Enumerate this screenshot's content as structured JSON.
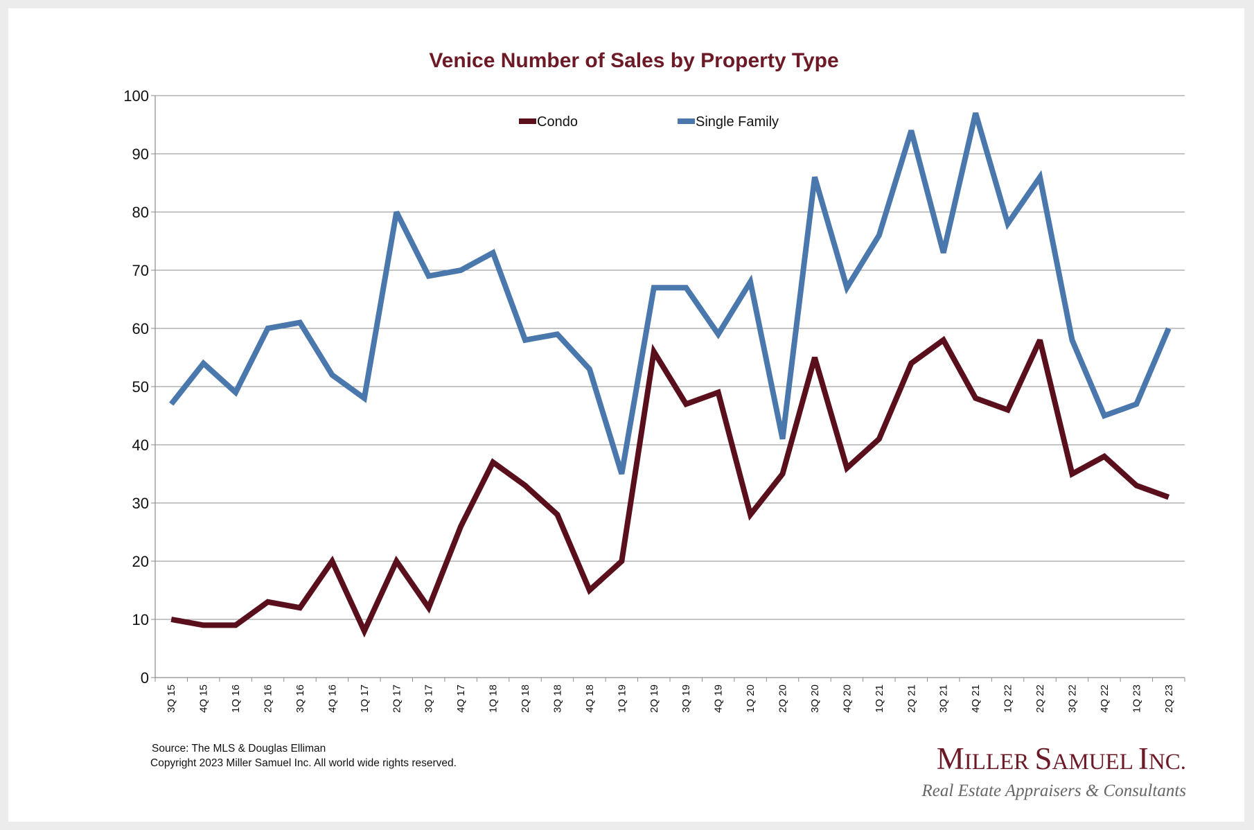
{
  "colors": {
    "condo": "#5a0f1c",
    "single_family": "#4a78ad",
    "title": "#6b1a26",
    "grid": "#8c8c8c"
  },
  "chart_data": {
    "type": "line",
    "title": "Venice Number of Sales by Property Type",
    "xlabel": "",
    "ylabel": "",
    "ylim": [
      0,
      100
    ],
    "yticks": [
      0,
      10,
      20,
      30,
      40,
      50,
      60,
      70,
      80,
      90,
      100
    ],
    "grid": "horizontal",
    "legend_position": "top-center",
    "categories": [
      "3Q 15",
      "4Q 15",
      "1Q 16",
      "2Q 16",
      "3Q 16",
      "4Q 16",
      "1Q 17",
      "2Q 17",
      "3Q 17",
      "4Q 17",
      "1Q 18",
      "2Q 18",
      "3Q 18",
      "4Q 18",
      "1Q 19",
      "2Q 19",
      "3Q 19",
      "4Q 19",
      "1Q 20",
      "2Q 20",
      "3Q 20",
      "4Q 20",
      "1Q 21",
      "2Q 21",
      "3Q 21",
      "4Q 21",
      "1Q 22",
      "2Q 22",
      "3Q 22",
      "4Q 22",
      "1Q 23",
      "2Q 23"
    ],
    "series": [
      {
        "name": "Condo",
        "color": "#5a0f1c",
        "values": [
          10,
          9,
          9,
          13,
          12,
          20,
          8,
          20,
          12,
          26,
          37,
          33,
          28,
          15,
          20,
          56,
          47,
          49,
          28,
          35,
          55,
          36,
          41,
          54,
          58,
          48,
          46,
          58,
          35,
          38,
          33,
          31
        ]
      },
      {
        "name": "Single Family",
        "color": "#4a78ad",
        "values": [
          47,
          54,
          49,
          60,
          61,
          52,
          48,
          80,
          69,
          70,
          73,
          58,
          59,
          53,
          35,
          67,
          67,
          59,
          68,
          41,
          86,
          67,
          76,
          94,
          73,
          97,
          78,
          86,
          58,
          45,
          47,
          60
        ]
      }
    ]
  },
  "footer": {
    "source": "Source: The MLS & Douglas Elliman",
    "copyright": "Copyright 2023 Miller Samuel Inc.  All world wide rights reserved."
  },
  "logo": {
    "name_M": "M",
    "name_iller": "ILLER",
    "name_S": "S",
    "name_amuel": "AMUEL",
    "name_I": "I",
    "name_nc": "NC.",
    "tagline": "Real Estate Appraisers & Consultants"
  }
}
